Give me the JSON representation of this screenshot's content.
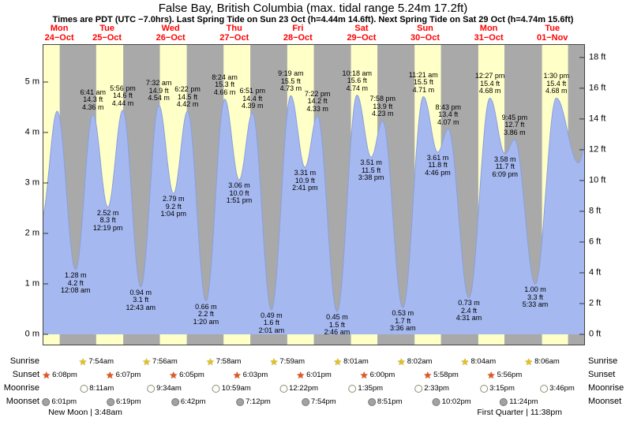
{
  "colors": {
    "day_band": "#ffffc8",
    "night_band": "#a9a9a9",
    "tide_fill": "#a5b8f0",
    "tide_stroke": "#8aa0dc",
    "day_label": "#ff0000"
  },
  "chart_data": {
    "type": "area",
    "title": "False Bay, British Columbia (max. tidal range 5.24m 17.2ft)",
    "subtitle": "Times are PDT (UTC −7.0hrs). Last Spring Tide on Sun 23 Oct (h=4.44m 14.6ft). Next Spring Tide on Sat 29 Oct (h=4.74m 15.6ft)",
    "xlabel": "",
    "ylabel": "",
    "grid": false,
    "legend": "none",
    "window_hours": [
      12,
      216
    ],
    "ylim_m": [
      -0.2,
      5.73
    ],
    "days": [
      {
        "dow": "Mon",
        "date": "24−Oct"
      },
      {
        "dow": "Tue",
        "date": "25−Oct"
      },
      {
        "dow": "Wed",
        "date": "26−Oct"
      },
      {
        "dow": "Thu",
        "date": "27−Oct"
      },
      {
        "dow": "Fri",
        "date": "28−Oct"
      },
      {
        "dow": "Sat",
        "date": "29−Oct"
      },
      {
        "dow": "Sun",
        "date": "30−Oct"
      },
      {
        "dow": "Mon",
        "date": "31−Oct"
      },
      {
        "dow": "Tue",
        "date": "01−Nov"
      }
    ],
    "y_axis_left": {
      "unit": "m",
      "ticks": [
        {
          "v": 5,
          "label": "5 m"
        },
        {
          "v": 4,
          "label": "4 m"
        },
        {
          "v": 3,
          "label": "3 m"
        },
        {
          "v": 2,
          "label": "2 m"
        },
        {
          "v": 1,
          "label": "1 m"
        },
        {
          "v": 0,
          "label": "0 m"
        }
      ]
    },
    "y_axis_right": {
      "unit": "ft",
      "ticks": [
        {
          "v": 18,
          "label": "18 ft"
        },
        {
          "v": 16,
          "label": "16 ft"
        },
        {
          "v": 14,
          "label": "14 ft"
        },
        {
          "v": 12,
          "label": "12 ft"
        },
        {
          "v": 10,
          "label": "10 ft"
        },
        {
          "v": 8,
          "label": "8 ft"
        },
        {
          "v": 6,
          "label": "6 ft"
        },
        {
          "v": 4,
          "label": "4 ft"
        },
        {
          "v": 2,
          "label": "2 ft"
        },
        {
          "v": 0,
          "label": "0 ft"
        }
      ]
    },
    "night_bands": [
      [
        18.13,
        31.9
      ],
      [
        42.12,
        55.93
      ],
      [
        66.08,
        79.97
      ],
      [
        90.05,
        103.98
      ],
      [
        114.02,
        128.02
      ],
      [
        138.0,
        152.03
      ],
      [
        161.97,
        176.07
      ],
      [
        185.93,
        200.1
      ],
      [
        209.92,
        216.0
      ]
    ],
    "extremes": [
      {
        "t": 11.3,
        "m": 2.3
      },
      {
        "t": 17.2,
        "m": 4.42
      },
      {
        "t": 24.13,
        "m": 1.28,
        "kind": "low",
        "lines": [
          "1.28 m",
          "4.2 ft",
          "12:08 am"
        ]
      },
      {
        "t": 30.68,
        "m": 4.36,
        "kind": "high",
        "lines": [
          "6:41 am",
          "14.3 ft",
          "4.36 m"
        ]
      },
      {
        "t": 36.32,
        "m": 2.52,
        "kind": "low",
        "lines": [
          "2.52 m",
          "8.3 ft",
          "12:19 pm"
        ]
      },
      {
        "t": 41.93,
        "m": 4.44,
        "kind": "high",
        "lines": [
          "5:56 pm",
          "14.6 ft",
          "4.44 m"
        ]
      },
      {
        "t": 48.72,
        "m": 0.94,
        "kind": "low",
        "lines": [
          "0.94 m",
          "3.1 ft",
          "12:43 am"
        ]
      },
      {
        "t": 55.53,
        "m": 4.54,
        "kind": "high",
        "lines": [
          "7:32 am",
          "14.9 ft",
          "4.54 m"
        ]
      },
      {
        "t": 61.07,
        "m": 2.79,
        "kind": "low",
        "lines": [
          "2.79 m",
          "9.2 ft",
          "1:04 pm"
        ]
      },
      {
        "t": 66.37,
        "m": 4.42,
        "kind": "high",
        "lines": [
          "6:22 pm",
          "14.5 ft",
          "4.42 m"
        ]
      },
      {
        "t": 73.33,
        "m": 0.66,
        "kind": "low",
        "lines": [
          "0.66 m",
          "2.2 ft",
          "1:20 am"
        ]
      },
      {
        "t": 80.4,
        "m": 4.66,
        "kind": "high",
        "lines": [
          "8:24 am",
          "15.3 ft",
          "4.66 m"
        ]
      },
      {
        "t": 85.85,
        "m": 3.06,
        "kind": "low",
        "lines": [
          "3.06 m",
          "10.0 ft",
          "1:51 pm"
        ]
      },
      {
        "t": 90.85,
        "m": 4.39,
        "kind": "high",
        "lines": [
          "6:51 pm",
          "14.4 ft",
          "4.39 m"
        ]
      },
      {
        "t": 98.02,
        "m": 0.49,
        "kind": "low",
        "lines": [
          "0.49 m",
          "1.6 ft",
          "2:01 am"
        ]
      },
      {
        "t": 105.32,
        "m": 4.73,
        "kind": "high",
        "lines": [
          "9:19 am",
          "15.5 ft",
          "4.73 m"
        ]
      },
      {
        "t": 110.68,
        "m": 3.31,
        "kind": "low",
        "lines": [
          "3.31 m",
          "10.9 ft",
          "2:41 pm"
        ]
      },
      {
        "t": 115.37,
        "m": 4.33,
        "kind": "high",
        "lines": [
          "7:22 pm",
          "14.2 ft",
          "4.33 m"
        ]
      },
      {
        "t": 122.77,
        "m": 0.45,
        "kind": "low",
        "lines": [
          "0.45 m",
          "1.5 ft",
          "2:46 am"
        ]
      },
      {
        "t": 130.3,
        "m": 4.74,
        "kind": "high",
        "lines": [
          "10:18 am",
          "15.6 ft",
          "4.74 m"
        ]
      },
      {
        "t": 135.63,
        "m": 3.51,
        "kind": "low",
        "lines": [
          "3.51 m",
          "11.5 ft",
          "3:38 pm"
        ]
      },
      {
        "t": 139.97,
        "m": 4.23,
        "kind": "high",
        "lines": [
          "7:58 pm",
          "13.9 ft",
          "4.23 m"
        ]
      },
      {
        "t": 147.6,
        "m": 0.53,
        "kind": "low",
        "lines": [
          "0.53 m",
          "1.7 ft",
          "3:36 am"
        ]
      },
      {
        "t": 155.35,
        "m": 4.71,
        "kind": "high",
        "lines": [
          "11:21 am",
          "15.5 ft",
          "4.71 m"
        ]
      },
      {
        "t": 160.77,
        "m": 3.61,
        "kind": "low",
        "lines": [
          "3.61 m",
          "11.8 ft",
          "4:46 pm"
        ]
      },
      {
        "t": 164.72,
        "m": 4.07,
        "kind": "high",
        "lines": [
          "8:43 pm",
          "13.4 ft",
          "4.07 m"
        ]
      },
      {
        "t": 172.52,
        "m": 0.73,
        "kind": "low",
        "lines": [
          "0.73 m",
          "2.4 ft",
          "4:31 am"
        ]
      },
      {
        "t": 180.45,
        "m": 4.68,
        "kind": "high",
        "lines": [
          "12:27 pm",
          "15.4 ft",
          "4.68 m"
        ]
      },
      {
        "t": 186.15,
        "m": 3.58,
        "kind": "low",
        "lines": [
          "3.58 m",
          "11.7 ft",
          "6:09 pm"
        ]
      },
      {
        "t": 189.75,
        "m": 3.86,
        "kind": "high",
        "lines": [
          "9:45 pm",
          "12.7 ft",
          "3.86 m"
        ]
      },
      {
        "t": 197.55,
        "m": 1.0,
        "kind": "low",
        "lines": [
          "1.00 m",
          "3.3 ft",
          "5:33 am"
        ]
      },
      {
        "t": 205.5,
        "m": 4.68,
        "kind": "high",
        "lines": [
          "1:30 pm",
          "15.4 ft",
          "4.68 m"
        ]
      },
      {
        "t": 213.8,
        "m": 3.4
      },
      {
        "t": 219.5,
        "m": 4.5
      }
    ]
  },
  "astro": {
    "note_separator": " | ",
    "rows": [
      {
        "name": "Sunrise",
        "icon": "sunrise-star-icon",
        "day_offset": 1,
        "times": [
          "7:54am",
          "7:56am",
          "7:58am",
          "7:59am",
          "8:01am",
          "8:02am",
          "8:04am",
          "8:06am"
        ]
      },
      {
        "name": "Sunset",
        "icon": "sunset-star-icon",
        "day_offset": 0,
        "times": [
          "6:08pm",
          "6:07pm",
          "6:05pm",
          "6:03pm",
          "6:01pm",
          "6:00pm",
          "5:58pm",
          "5:56pm"
        ]
      },
      {
        "name": "Moonrise",
        "icon": "moonrise-icon",
        "day_offset": 1,
        "times": [
          "8:11am",
          "9:34am",
          "10:59am",
          "12:22pm",
          "1:35pm",
          "2:33pm",
          "3:15pm",
          "3:46pm"
        ]
      },
      {
        "name": "Moonset",
        "icon": "moonset-icon",
        "day_offset": 0,
        "times": [
          "6:01pm",
          "6:19pm",
          "6:42pm",
          "7:12pm",
          "7:54pm",
          "8:51pm",
          "10:02pm",
          "11:24pm"
        ]
      }
    ],
    "notes": [
      {
        "label": "New Moon",
        "time": "3:48am",
        "day_index": 1
      },
      {
        "label": "First Quarter",
        "time": "11:38pm",
        "day_index": 7
      }
    ]
  }
}
